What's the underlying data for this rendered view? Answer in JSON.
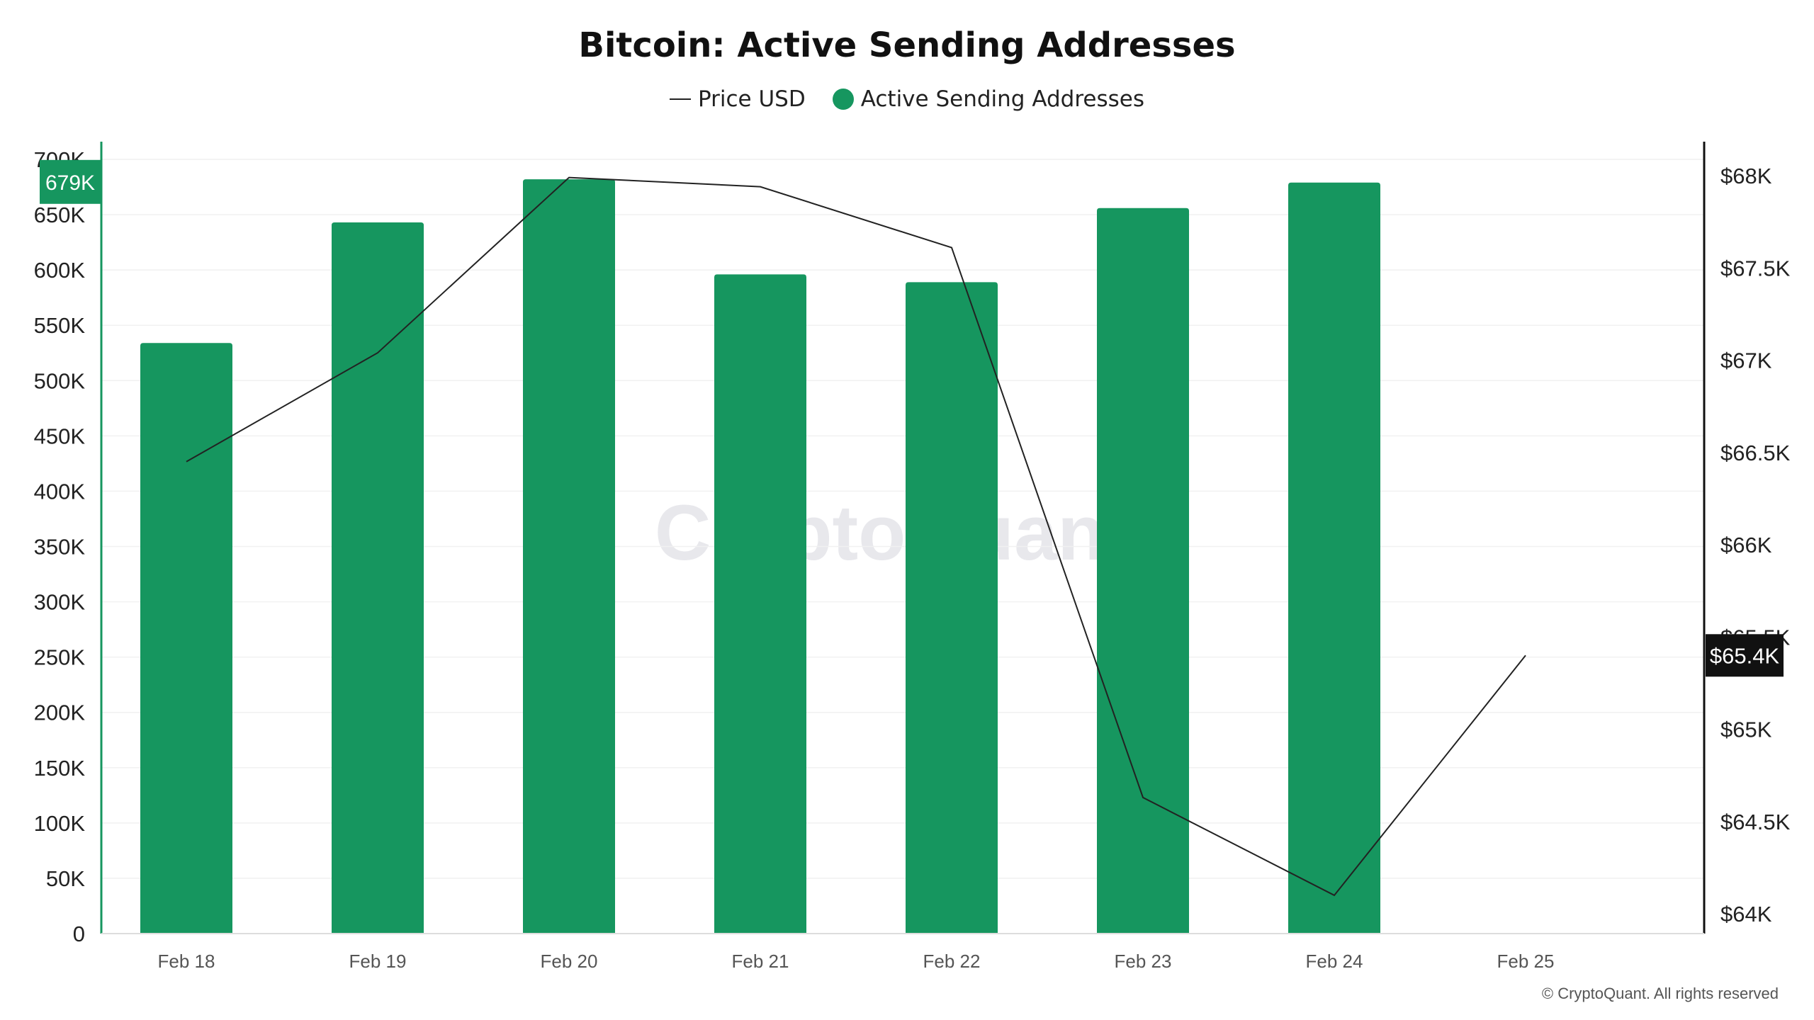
{
  "chart_data": {
    "type": "bar",
    "title": "Bitcoin: Active Sending Addresses",
    "categories": [
      "Feb 18",
      "Feb 19",
      "Feb 20",
      "Feb 21",
      "Feb 22",
      "Feb 23",
      "Feb 24",
      "Feb 25"
    ],
    "series": [
      {
        "name": "Active Sending Addresses",
        "type": "bar",
        "axis": "left",
        "color": "#16965f",
        "values": [
          534000,
          643000,
          682000,
          596000,
          589000,
          656000,
          679000,
          null
        ]
      },
      {
        "name": "Price USD",
        "type": "line",
        "axis": "right",
        "color": "#222222",
        "values": [
          66450,
          67040,
          67990,
          67940,
          67610,
          64630,
          64100,
          65400
        ]
      }
    ],
    "y_left": {
      "ticks": [
        "0",
        "50K",
        "100K",
        "150K",
        "200K",
        "250K",
        "300K",
        "350K",
        "400K",
        "450K",
        "500K",
        "550K",
        "600K",
        "650K",
        "700K"
      ],
      "ylim": [
        0,
        700000
      ],
      "badge": "679K"
    },
    "y_right": {
      "ticks": [
        "$64K",
        "$64.5K",
        "$65K",
        "$65.5K",
        "$66K",
        "$66.5K",
        "$67K",
        "$67.5K",
        "$68K"
      ],
      "ylim": [
        64000,
        68000
      ],
      "badge": "$65.4K"
    },
    "legend": {
      "position": "top-center",
      "items": [
        {
          "label": "Price USD",
          "marker": "line"
        },
        {
          "label": "Active Sending Addresses",
          "marker": "dot"
        }
      ]
    },
    "grid": true
  },
  "watermark": "CryptoQuant",
  "copyright": "© CryptoQuant. All rights reserved"
}
